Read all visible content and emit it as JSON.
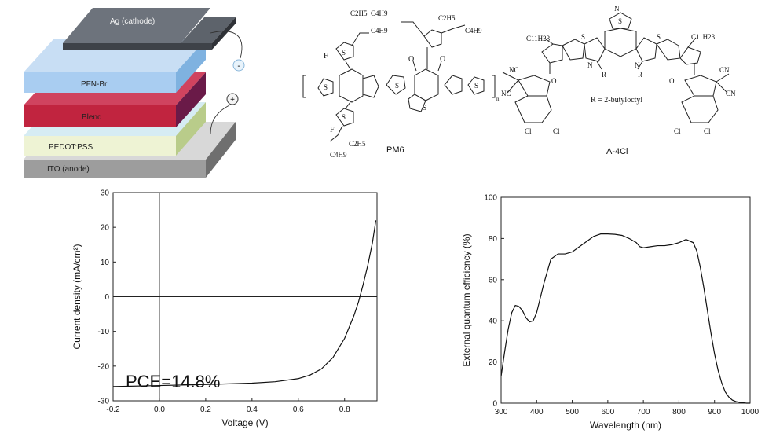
{
  "device_stack": {
    "layers": [
      {
        "label": "Ag (cathode)",
        "color": "#6d737c"
      },
      {
        "label": "PFN-Br",
        "color": "#a9cdf1"
      },
      {
        "label": "Blend",
        "color": "#c1243f"
      },
      {
        "label": "PEDOT:PSS",
        "color": "#eef3d4"
      },
      {
        "label": "ITO (anode)",
        "color": "#9d9d9d"
      }
    ],
    "terminal_minus": "-",
    "terminal_plus": "+"
  },
  "molecules": {
    "pm6": {
      "name": "PM6",
      "substituents": [
        "C2H5",
        "C4H9",
        "F",
        "S",
        "O",
        "n"
      ]
    },
    "a4cl": {
      "name": "A-4Cl",
      "r_note": "R = 2-butyloctyl",
      "substituents": [
        "C11H23",
        "NC",
        "CN",
        "Cl",
        "N",
        "R",
        "S",
        "O"
      ]
    }
  },
  "chart_data": [
    {
      "type": "line",
      "xlabel": "Voltage (V)",
      "ylabel": "Current density (mA/cm²)",
      "xlim": [
        -0.2,
        0.94
      ],
      "ylim": [
        -30,
        30
      ],
      "xticks": [
        -0.2,
        0.0,
        0.2,
        0.4,
        0.6,
        0.8
      ],
      "xtick_labels": [
        "-0.2",
        "0.0",
        "0.2",
        "0.4",
        "0.6",
        "0.8"
      ],
      "yticks": [
        -30,
        -20,
        -10,
        0,
        10,
        20,
        30
      ],
      "ytick_labels": [
        "-30",
        "-20",
        "-10",
        "0",
        "10",
        "20",
        "30"
      ],
      "annotation": "PCE=14.8%",
      "series": [
        {
          "x": [
            -0.2,
            0.0,
            0.2,
            0.4,
            0.5,
            0.6,
            0.65,
            0.7,
            0.75,
            0.8,
            0.84,
            0.86,
            0.88,
            0.9,
            0.92,
            0.935
          ],
          "y": [
            -25.9,
            -25.6,
            -25.3,
            -24.9,
            -24.5,
            -23.6,
            -22.6,
            -20.8,
            -17.5,
            -12.0,
            -5.5,
            -1.5,
            3.5,
            9.0,
            15.5,
            22.0
          ]
        }
      ],
      "reference_lines": {
        "x": 0,
        "y": 0
      },
      "grid": false
    },
    {
      "type": "line",
      "xlabel": "Wavelength (nm)",
      "ylabel": "External quantum efficiency (%)",
      "xlim": [
        300,
        1000
      ],
      "ylim": [
        0,
        100
      ],
      "xticks": [
        300,
        400,
        500,
        600,
        700,
        800,
        900,
        1000
      ],
      "xtick_labels": [
        "300",
        "400",
        "500",
        "600",
        "700",
        "800",
        "900",
        "1000"
      ],
      "yticks": [
        0,
        20,
        40,
        60,
        80,
        100
      ],
      "ytick_labels": [
        "0",
        "20",
        "40",
        "60",
        "80",
        "100"
      ],
      "series": [
        {
          "x": [
            300,
            310,
            320,
            330,
            340,
            350,
            360,
            370,
            380,
            390,
            400,
            420,
            440,
            460,
            480,
            500,
            520,
            540,
            560,
            580,
            600,
            620,
            640,
            660,
            680,
            690,
            700,
            720,
            740,
            760,
            780,
            800,
            820,
            840,
            850,
            860,
            870,
            880,
            890,
            900,
            910,
            920,
            930,
            940,
            950,
            960,
            970,
            980,
            990,
            1000
          ],
          "y": [
            13,
            25,
            36,
            44,
            47.5,
            47,
            45,
            41.5,
            39.5,
            40,
            44,
            58,
            70,
            72.5,
            72.5,
            73.5,
            76,
            78.5,
            81,
            82.2,
            82.2,
            82,
            81.5,
            80,
            78,
            76,
            75.5,
            76,
            76.5,
            76.5,
            77,
            78,
            79.5,
            78,
            74,
            66,
            56,
            45,
            34,
            24,
            16,
            10,
            5.5,
            3,
            1.5,
            0.8,
            0.4,
            0.2,
            0,
            0
          ]
        }
      ],
      "grid": false
    }
  ]
}
